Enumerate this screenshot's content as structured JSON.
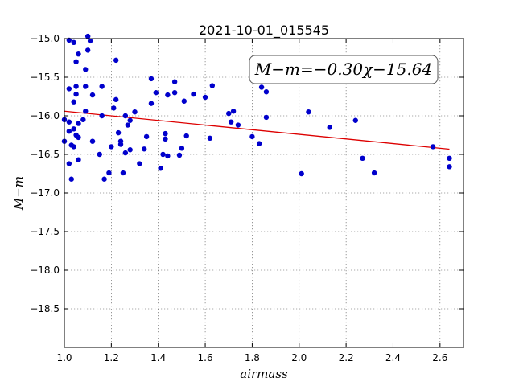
{
  "chart_data": {
    "type": "scatter",
    "title": "2021-10-01_015545",
    "xlabel": "airmass",
    "ylabel": "M−m",
    "xlim": [
      1.0,
      2.7
    ],
    "ylim": [
      -15.0,
      -19.0
    ],
    "y_inverted": true,
    "grid": true,
    "x_ticks": [
      "1.0",
      "1.2",
      "1.4",
      "1.6",
      "1.8",
      "2.0",
      "2.2",
      "2.4",
      "2.6"
    ],
    "y_ticks": [
      "−15.0",
      "−15.5",
      "−16.0",
      "−16.5",
      "−17.0",
      "−17.5",
      "−18.0",
      "−18.5"
    ],
    "annotation": "M−m=−0.30χ−15.64",
    "colors": {
      "points": "#0000cc",
      "fit_line": "#dd0000"
    },
    "fit": {
      "slope": -0.3,
      "intercept": -15.64,
      "x_range": [
        1.0,
        2.64
      ]
    },
    "points": [
      [
        1.0,
        -16.05
      ],
      [
        1.0,
        -16.33
      ],
      [
        1.02,
        -15.02
      ],
      [
        1.02,
        -15.65
      ],
      [
        1.02,
        -16.08
      ],
      [
        1.02,
        -16.2
      ],
      [
        1.02,
        -16.62
      ],
      [
        1.03,
        -16.38
      ],
      [
        1.03,
        -16.82
      ],
      [
        1.04,
        -15.05
      ],
      [
        1.04,
        -15.82
      ],
      [
        1.04,
        -16.17
      ],
      [
        1.04,
        -16.4
      ],
      [
        1.05,
        -15.3
      ],
      [
        1.05,
        -15.62
      ],
      [
        1.05,
        -15.72
      ],
      [
        1.05,
        -16.25
      ],
      [
        1.06,
        -15.2
      ],
      [
        1.06,
        -16.1
      ],
      [
        1.06,
        -16.28
      ],
      [
        1.06,
        -16.57
      ],
      [
        1.08,
        -16.05
      ],
      [
        1.09,
        -15.62
      ],
      [
        1.09,
        -15.94
      ],
      [
        1.09,
        -15.4
      ],
      [
        1.1,
        -14.97
      ],
      [
        1.1,
        -15.15
      ],
      [
        1.11,
        -15.03
      ],
      [
        1.12,
        -15.73
      ],
      [
        1.12,
        -16.33
      ],
      [
        1.15,
        -16.5
      ],
      [
        1.16,
        -15.62
      ],
      [
        1.16,
        -16.0
      ],
      [
        1.17,
        -16.82
      ],
      [
        1.19,
        -16.74
      ],
      [
        1.2,
        -16.4
      ],
      [
        1.21,
        -15.9
      ],
      [
        1.22,
        -15.79
      ],
      [
        1.22,
        -15.28
      ],
      [
        1.23,
        -16.22
      ],
      [
        1.24,
        -16.33
      ],
      [
        1.24,
        -16.37
      ],
      [
        1.25,
        -16.74
      ],
      [
        1.26,
        -16.48
      ],
      [
        1.26,
        -16.0
      ],
      [
        1.27,
        -16.12
      ],
      [
        1.28,
        -16.44
      ],
      [
        1.28,
        -16.06
      ],
      [
        1.3,
        -15.95
      ],
      [
        1.32,
        -16.62
      ],
      [
        1.34,
        -16.43
      ],
      [
        1.35,
        -16.27
      ],
      [
        1.37,
        -15.84
      ],
      [
        1.37,
        -15.52
      ],
      [
        1.39,
        -15.7
      ],
      [
        1.41,
        -16.68
      ],
      [
        1.42,
        -16.5
      ],
      [
        1.43,
        -16.23
      ],
      [
        1.43,
        -16.3
      ],
      [
        1.44,
        -16.52
      ],
      [
        1.44,
        -15.73
      ],
      [
        1.47,
        -15.56
      ],
      [
        1.47,
        -15.7
      ],
      [
        1.49,
        -16.51
      ],
      [
        1.5,
        -16.42
      ],
      [
        1.51,
        -15.81
      ],
      [
        1.52,
        -16.26
      ],
      [
        1.55,
        -15.72
      ],
      [
        1.6,
        -15.76
      ],
      [
        1.62,
        -16.29
      ],
      [
        1.63,
        -15.61
      ],
      [
        1.7,
        -15.97
      ],
      [
        1.71,
        -16.08
      ],
      [
        1.72,
        -15.94
      ],
      [
        1.74,
        -16.12
      ],
      [
        1.8,
        -16.27
      ],
      [
        1.83,
        -16.36
      ],
      [
        1.84,
        -15.63
      ],
      [
        1.86,
        -16.02
      ],
      [
        1.86,
        -15.69
      ],
      [
        2.01,
        -16.75
      ],
      [
        2.04,
        -15.95
      ],
      [
        2.13,
        -16.15
      ],
      [
        2.24,
        -16.06
      ],
      [
        2.27,
        -16.55
      ],
      [
        2.32,
        -16.74
      ],
      [
        2.57,
        -16.4
      ],
      [
        2.64,
        -16.55
      ],
      [
        2.64,
        -16.66
      ]
    ]
  }
}
